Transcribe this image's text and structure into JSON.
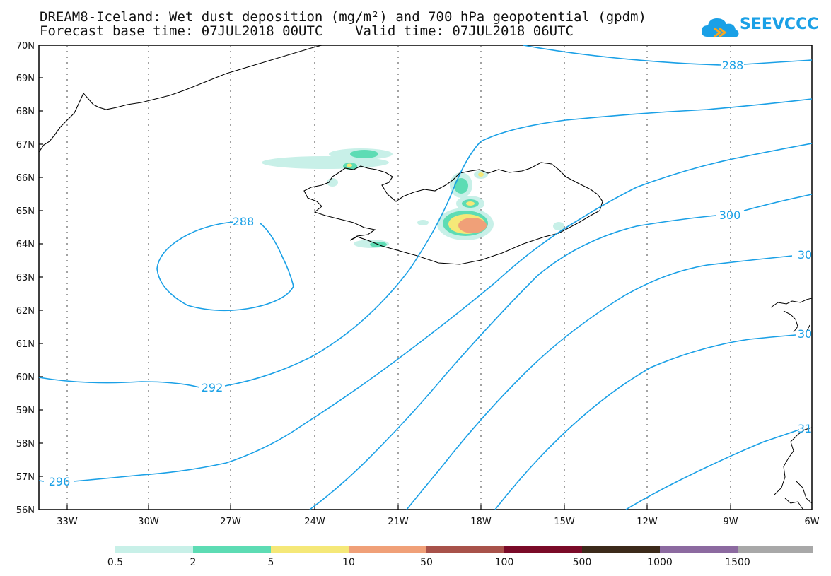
{
  "title": {
    "line1": "DREAM8-Iceland: Wet dust deposition (mg/m²) and 700 hPa geopotential (gpdm)",
    "line2": "Forecast base time: 07JUL2018 00UTC    Valid time: 07JUL2018 06UTC"
  },
  "logo": {
    "text": "SEEVCCC",
    "icon": "cloud-icon"
  },
  "map": {
    "lat_labels": [
      "70N",
      "69N",
      "68N",
      "67N",
      "66N",
      "65N",
      "64N",
      "63N",
      "62N",
      "61N",
      "60N",
      "59N",
      "58N",
      "57N",
      "56N"
    ],
    "lon_labels": [
      "33W",
      "30W",
      "27W",
      "24W",
      "21W",
      "18W",
      "15W",
      "12W",
      "9W",
      "6W"
    ],
    "contour_color": "#1aa0e6",
    "contour_labels": [
      "288",
      "288",
      "292",
      "296",
      "300",
      "30",
      "30",
      "31"
    ]
  },
  "colorbar": {
    "labels": [
      "0.5",
      "2",
      "5",
      "10",
      "50",
      "100",
      "500",
      "1000",
      "1500"
    ],
    "colors": [
      "#c8f0e8",
      "#5ddcb4",
      "#f5e878",
      "#f0a078",
      "#a8524a",
      "#7a0a28",
      "#3c2a1a",
      "#8c6aa0",
      "#a8a8a8"
    ]
  }
}
